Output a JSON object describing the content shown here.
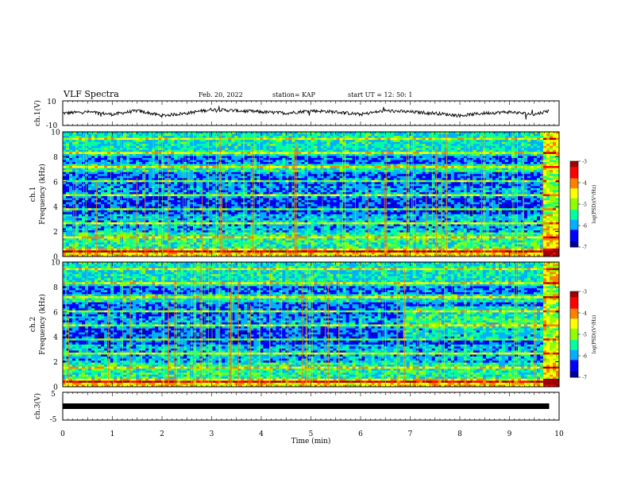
{
  "header": {
    "title": "VLF Spectra",
    "date": "Feb. 20, 2022",
    "station": "station= KAP",
    "start": "start  UT =   12: 50: 1"
  },
  "chart_data": [
    {
      "type": "line",
      "panel": "ch1-waveform",
      "ylabel": "ch.1(V)",
      "ylim": [
        -10,
        10
      ],
      "y_ticks": [
        "10",
        "-10"
      ],
      "x": [
        0,
        0.5,
        1,
        1.5,
        2,
        2.5,
        3,
        3.5,
        4,
        4.5,
        5,
        5.5,
        6,
        6.5,
        7,
        7.5,
        8,
        8.5,
        9,
        9.5,
        9.8
      ],
      "values": [
        0,
        1,
        -1,
        2,
        -2,
        0,
        3,
        2,
        1,
        0,
        2,
        1,
        -1,
        2,
        1,
        0,
        -2,
        0,
        1,
        -1,
        2
      ]
    },
    {
      "type": "heatmap",
      "panel": "ch1-spectrogram",
      "ylabel": "ch.1\nFrequency (kHz)",
      "ylim": [
        0,
        10
      ],
      "y_ticks": [
        "0",
        "2",
        "4",
        "6",
        "8",
        "10"
      ]
    },
    {
      "type": "heatmap",
      "panel": "ch2-spectrogram",
      "ylabel": "ch.2\nFrequency (kHz)",
      "ylim": [
        0,
        10
      ],
      "y_ticks": [
        "0",
        "2",
        "4",
        "6",
        "8",
        "10"
      ]
    },
    {
      "type": "line",
      "panel": "ch3-signal",
      "ylabel": "ch.3(V)",
      "ylim": [
        -5,
        5
      ],
      "y_ticks": [
        "5",
        "-5"
      ],
      "x": [
        0,
        9.8
      ],
      "values": [
        0,
        0
      ]
    }
  ],
  "x_axis": {
    "label": "Time  (min)",
    "range": [
      0,
      10
    ],
    "ticks": [
      "0",
      "1",
      "2",
      "3",
      "4",
      "5",
      "6",
      "7",
      "8",
      "9",
      "10"
    ]
  },
  "colorbar": {
    "label": "log(PSD)(V²/Hz)",
    "range": [
      -7,
      -3
    ],
    "ticks": [
      "-3",
      "-4",
      "-5",
      "-6",
      "-7"
    ],
    "colors": [
      "#000099",
      "#0000ff",
      "#00b0ff",
      "#00ffa0",
      "#90ff00",
      "#ffff00",
      "#ff8000",
      "#ff0000",
      "#a00000"
    ]
  }
}
